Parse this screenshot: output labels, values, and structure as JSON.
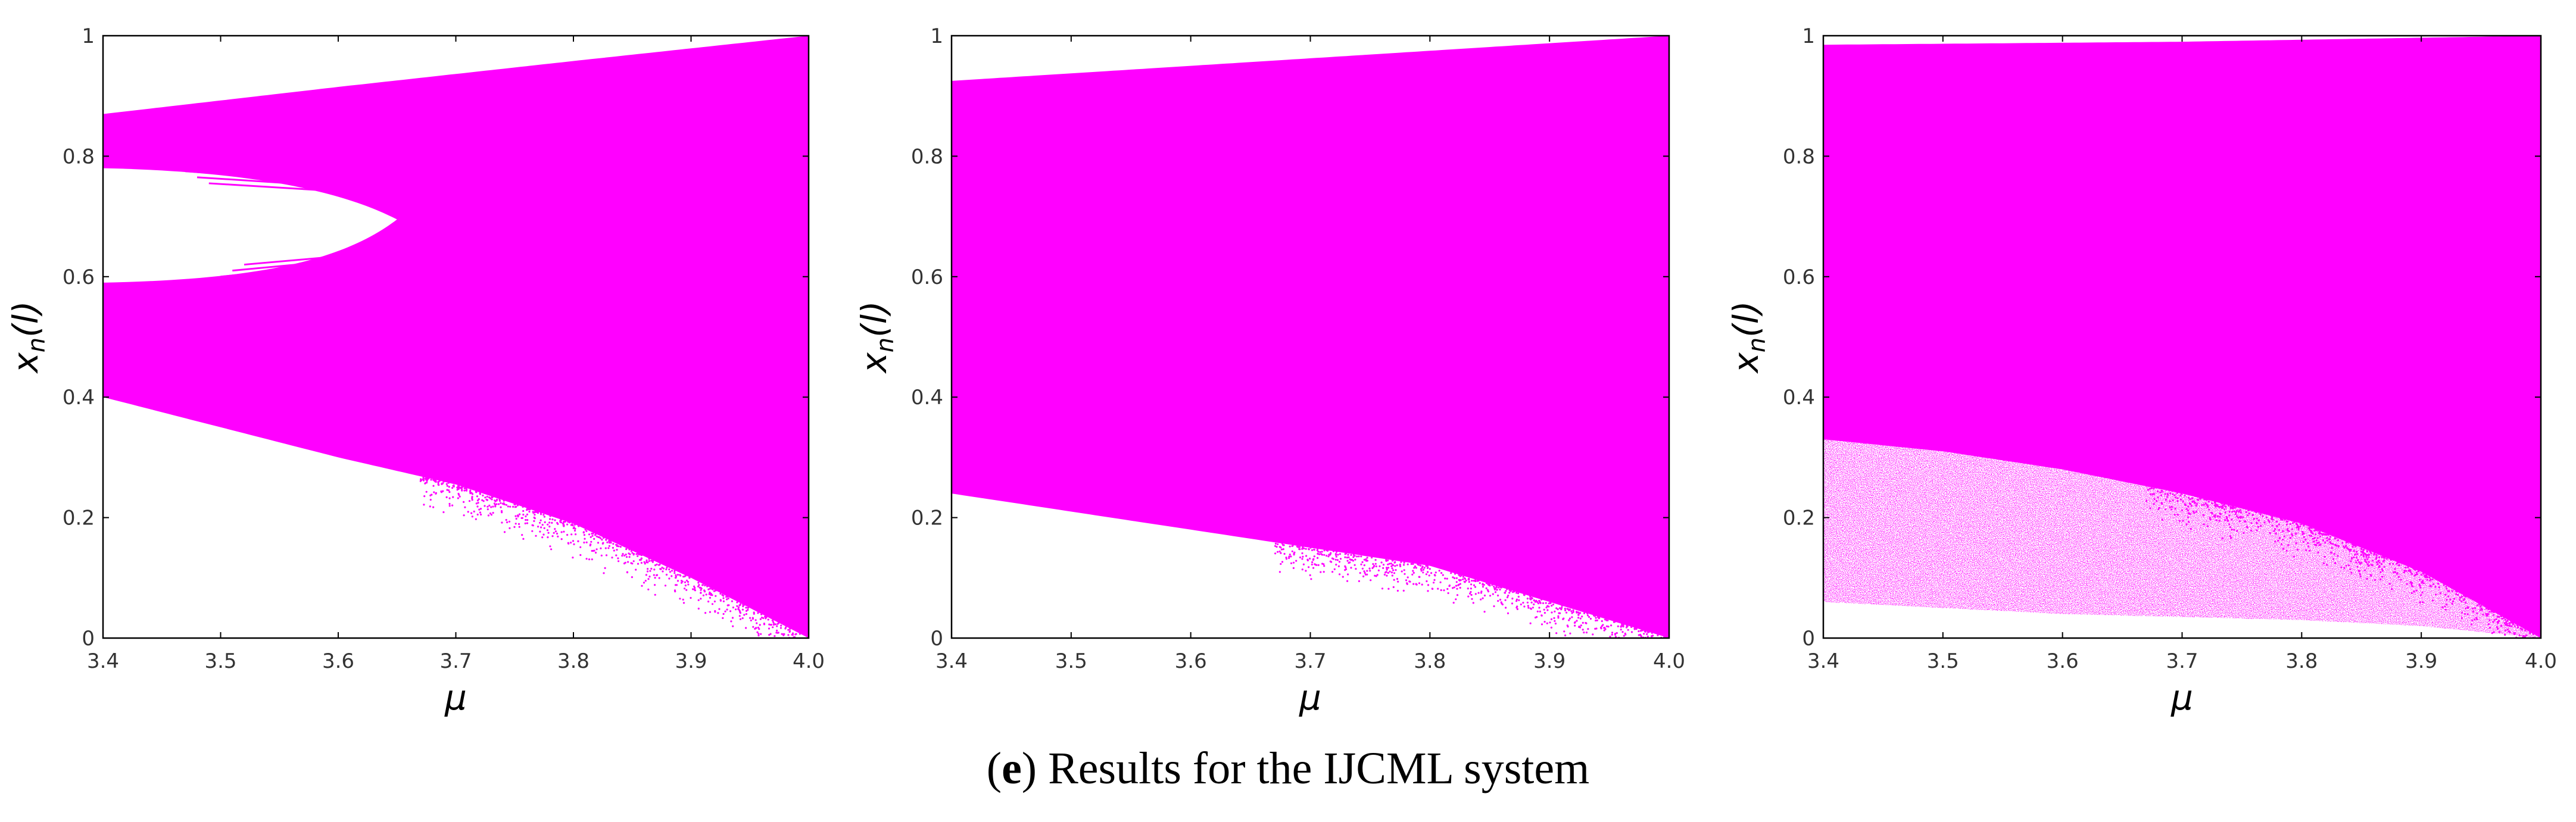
{
  "caption": {
    "label": "e",
    "text": ") Results for the IJCML system"
  },
  "colors": {
    "points": "#ff00ff",
    "axis": "#000000",
    "background": "#ffffff"
  },
  "chart_data": [
    {
      "type": "scatter",
      "description": "bifurcation diagram",
      "xlabel": "μ",
      "ylabel": "x_n(l)",
      "xlim": [
        3.4,
        4.0
      ],
      "ylim": [
        0,
        1
      ],
      "xticks": [
        "3.4",
        "3.5",
        "3.6",
        "3.7",
        "3.8",
        "3.9",
        "4.0"
      ],
      "yticks": [
        "0",
        "0.2",
        "0.4",
        "0.6",
        "0.8",
        "1"
      ],
      "grid": false,
      "upper_boundary": {
        "x": [
          3.4,
          3.6,
          3.8,
          4.0
        ],
        "y": [
          0.87,
          0.915,
          0.958,
          1.0
        ]
      },
      "lower_boundary": {
        "x": [
          3.4,
          3.5,
          3.6,
          3.7,
          3.8,
          3.9,
          4.0
        ],
        "y": [
          0.4,
          0.35,
          0.3,
          0.255,
          0.19,
          0.1,
          0.0
        ]
      },
      "gap": {
        "x_start": 3.4,
        "x_tip": 3.65,
        "top": 0.78,
        "bottom": 0.59
      }
    },
    {
      "type": "scatter",
      "description": "bifurcation diagram",
      "xlabel": "μ",
      "ylabel": "x_n(l)",
      "xlim": [
        3.4,
        4.0
      ],
      "ylim": [
        0,
        1
      ],
      "xticks": [
        "3.4",
        "3.5",
        "3.6",
        "3.7",
        "3.8",
        "3.9",
        "4.0"
      ],
      "yticks": [
        "0",
        "0.2",
        "0.4",
        "0.6",
        "0.8",
        "1"
      ],
      "grid": false,
      "upper_boundary": {
        "x": [
          3.4,
          3.6,
          3.8,
          4.0
        ],
        "y": [
          0.925,
          0.95,
          0.975,
          1.0
        ]
      },
      "lower_boundary": {
        "x": [
          3.4,
          3.5,
          3.6,
          3.7,
          3.8,
          3.9,
          4.0
        ],
        "y": [
          0.24,
          0.21,
          0.18,
          0.15,
          0.12,
          0.06,
          0.0
        ]
      },
      "gap": null
    },
    {
      "type": "scatter",
      "description": "bifurcation diagram",
      "xlabel": "μ",
      "ylabel": "x_n(l)",
      "xlim": [
        3.4,
        4.0
      ],
      "ylim": [
        0,
        1
      ],
      "xticks": [
        "3.4",
        "3.5",
        "3.6",
        "3.7",
        "3.8",
        "3.9",
        "4.0"
      ],
      "yticks": [
        "0",
        "0.2",
        "0.4",
        "0.6",
        "0.8",
        "1"
      ],
      "grid": false,
      "upper_boundary": {
        "x": [
          3.4,
          3.7,
          4.0
        ],
        "y": [
          0.985,
          0.99,
          1.0
        ]
      },
      "lower_boundary": {
        "x": [
          3.4,
          3.5,
          3.6,
          3.7,
          3.8,
          3.9,
          4.0
        ],
        "y": [
          0.06,
          0.05,
          0.04,
          0.035,
          0.03,
          0.02,
          0.0
        ]
      },
      "dense_lower_boundary": {
        "x": [
          3.4,
          3.5,
          3.6,
          3.7,
          3.8,
          3.9,
          4.0
        ],
        "y": [
          0.33,
          0.31,
          0.28,
          0.24,
          0.19,
          0.11,
          0.0
        ]
      },
      "gap": null
    }
  ]
}
